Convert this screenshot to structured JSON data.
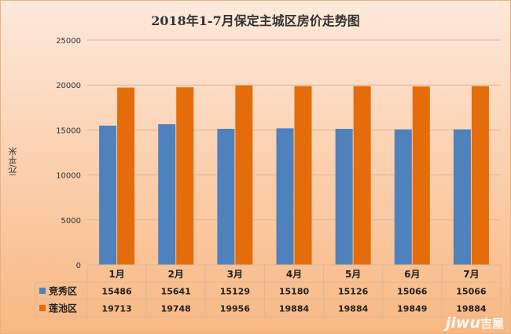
{
  "chart_data": {
    "type": "bar",
    "title": "2018年1-7月保定主城区房价走势图",
    "ylabel": "元/平米",
    "xlabel": "",
    "ylim": [
      0,
      25000
    ],
    "yticks": [
      0,
      5000,
      10000,
      15000,
      20000,
      25000
    ],
    "grid": true,
    "legend": "data-table",
    "categories": [
      "1月",
      "2月",
      "3月",
      "4月",
      "5月",
      "6月",
      "7月"
    ],
    "series": [
      {
        "name": "竞秀区",
        "color": "#4f81bd",
        "values": [
          15486,
          15641,
          15129,
          15180,
          15126,
          15066,
          15066
        ]
      },
      {
        "name": "莲池区",
        "color": "#e46c0a",
        "values": [
          19713,
          19748,
          19956,
          19884,
          19884,
          19849,
          19884
        ]
      }
    ]
  },
  "watermark": {
    "latin": "jiwu",
    "cn": "吉屋"
  }
}
